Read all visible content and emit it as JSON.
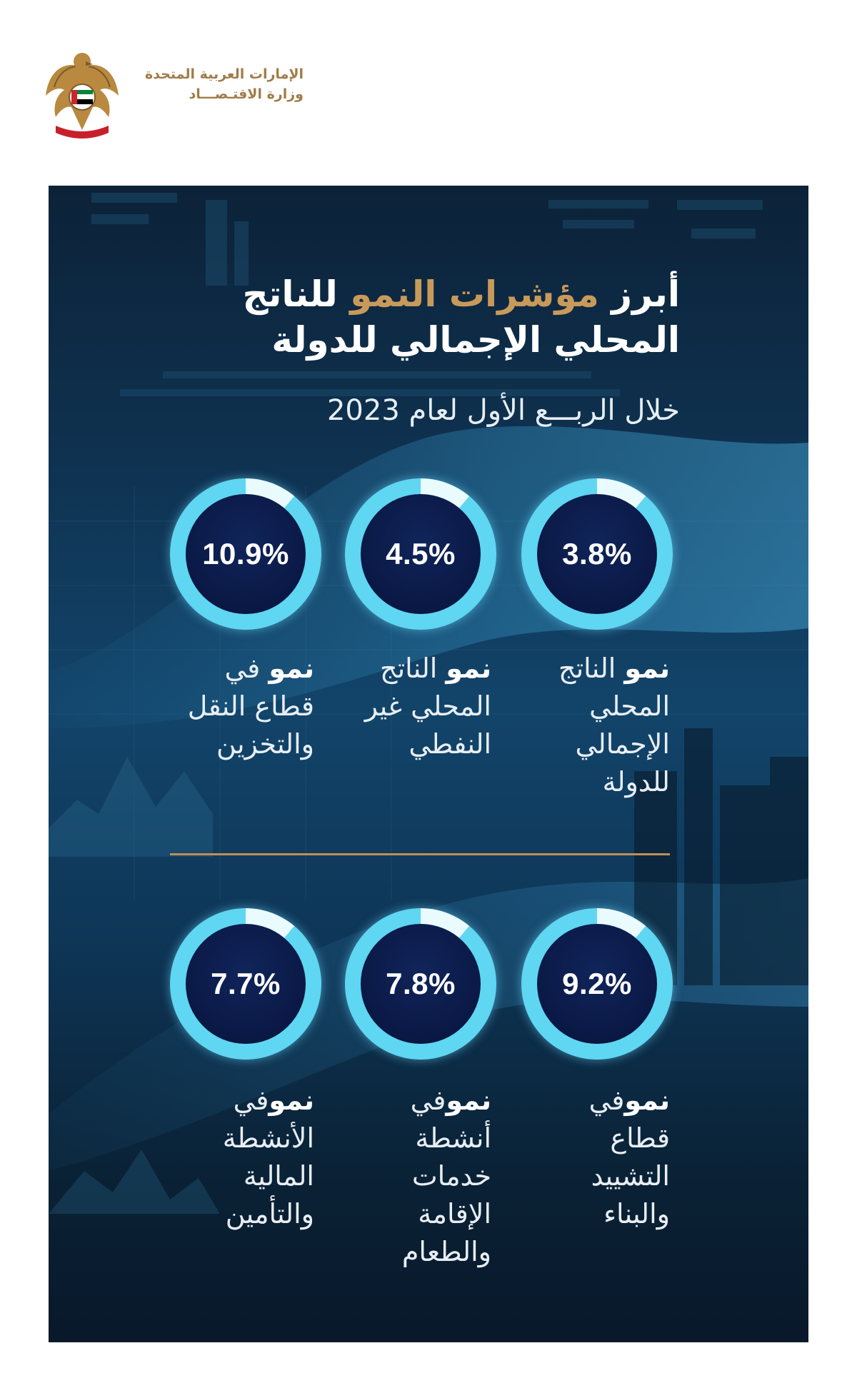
{
  "header": {
    "org_line1": "الإمارات العربية المتحدة",
    "org_line2": "وزارة الاقتـصـــاد",
    "emblem_icon": "uae-falcon-emblem"
  },
  "infographic": {
    "title_part1": "أبرز ",
    "title_highlight": "مؤشرات النمو",
    "title_part2": " للناتج",
    "title_line2": "المحلي الإجمالي للدولة",
    "subtitle": "خلال الربـــع الأول لعام 2023",
    "colors": {
      "accent_gold": "#c89a5a",
      "ring_cyan": "#5fd6f2",
      "divider": "#c08f53"
    },
    "indicators_top": [
      {
        "value": "3.8%",
        "bold": "نمو",
        "rest": " الناتج المحلي الإجمالي للدولة"
      },
      {
        "value": "4.5%",
        "bold": "نمو",
        "rest": " الناتج المحلي غير النفطي"
      },
      {
        "value": "10.9%",
        "bold": "نمو",
        "rest": " في قطاع النقل والتخزين"
      }
    ],
    "indicators_bottom": [
      {
        "value": "9.2%",
        "bold": "نمو",
        "rest": "في قطاع التشييد والبناء"
      },
      {
        "value": "7.8%",
        "bold": "نمو",
        "rest": "في أنشطة خدمات الإقامة والطعام"
      },
      {
        "value": "7.7%",
        "bold": "نمو",
        "rest": "في الأنشطة المالية والتأمين"
      }
    ]
  }
}
